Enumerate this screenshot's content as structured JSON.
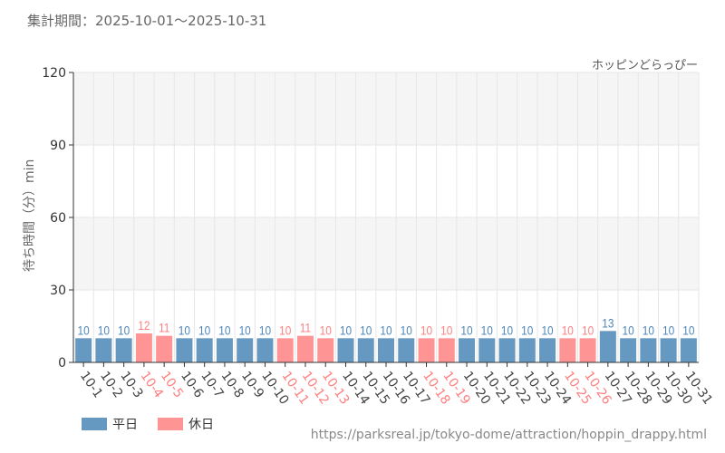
{
  "header": {
    "period": "集計期間：2025-10-01～2025-10-31"
  },
  "footer": {
    "url": "https://parksreal.jp/tokyo-dome/attraction/hoppin_drappy.html"
  },
  "colors": {
    "weekday": "#6699c2",
    "holiday": "#ff9494",
    "weekday_label": "#4f86b8",
    "holiday_label": "#ff7f7f"
  },
  "chart_data": {
    "type": "bar",
    "title": "ホッピンどらっぴー",
    "ylabel": "待ち時間（分）min",
    "xlabel": "",
    "ylim": [
      0,
      120
    ],
    "yticks": [
      0,
      30,
      60,
      90,
      120
    ],
    "legend": [
      {
        "name": "平日",
        "key": "weekday"
      },
      {
        "name": "休日",
        "key": "holiday"
      }
    ],
    "legend_placement": "bottom-left",
    "categories": [
      "10-1",
      "10-2",
      "10-3",
      "10-4",
      "10-5",
      "10-6",
      "10-7",
      "10-8",
      "10-9",
      "10-10",
      "10-11",
      "10-12",
      "10-13",
      "10-14",
      "10-15",
      "10-16",
      "10-17",
      "10-18",
      "10-19",
      "10-20",
      "10-21",
      "10-22",
      "10-23",
      "10-24",
      "10-25",
      "10-26",
      "10-27",
      "10-28",
      "10-29",
      "10-30",
      "10-31"
    ],
    "values": [
      10,
      10,
      10,
      12,
      11,
      10,
      10,
      10,
      10,
      10,
      10,
      11,
      10,
      10,
      10,
      10,
      10,
      10,
      10,
      10,
      10,
      10,
      10,
      10,
      10,
      10,
      13,
      10,
      10,
      10,
      10
    ],
    "holiday": [
      false,
      false,
      false,
      true,
      true,
      false,
      false,
      false,
      false,
      false,
      true,
      true,
      true,
      false,
      false,
      false,
      false,
      true,
      true,
      false,
      false,
      false,
      false,
      false,
      true,
      true,
      false,
      false,
      false,
      false,
      false
    ]
  }
}
